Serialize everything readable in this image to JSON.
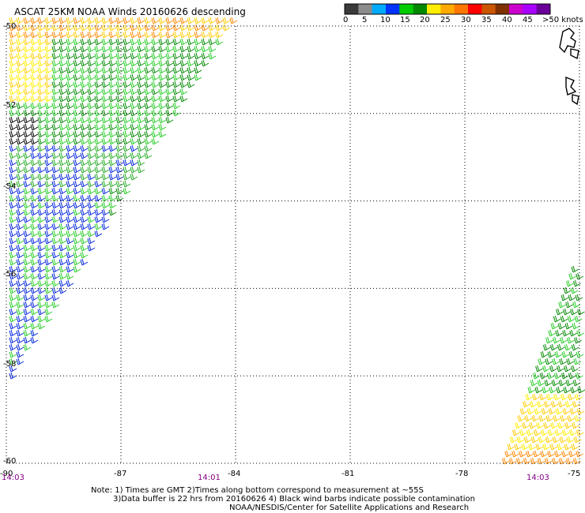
{
  "title": "ASCAT 25KM NOAA Winds 20160626 descending",
  "map": {
    "lat_min": -60,
    "lat_max": -50,
    "lon_min": -90,
    "lon_max": -75,
    "lat_grid": [
      -50,
      -52,
      -54,
      -56,
      -58,
      -60
    ],
    "lon_grid": [
      -90,
      -87,
      -84,
      -81,
      -78,
      -75
    ]
  },
  "lat_labels": [
    "-50",
    "-52",
    "-54",
    "-56",
    "-58",
    "-60"
  ],
  "lon_labels": [
    "-90",
    "-87",
    "-84",
    "-81",
    "-78",
    "-75"
  ],
  "times": [
    "14:03",
    "14:01",
    "14:03"
  ],
  "legend": {
    "unit": "knots",
    "ticks": [
      "0",
      "5",
      "10",
      "15",
      "20",
      "25",
      "30",
      "35",
      "40",
      "45",
      ">50"
    ],
    "colors": [
      "#3a3a3a",
      "#8c8c8c",
      "#00aaff",
      "#0033ff",
      "#00cc00",
      "#008800",
      "#ffee00",
      "#ffaa00",
      "#ff7700",
      "#ff0000",
      "#cc5500",
      "#803000",
      "#cc00cc",
      "#aa00ff",
      "#6a0099"
    ]
  },
  "notes": {
    "line1": "Note: 1) Times are GMT 2)Times along bottom correspond to measurement at ~55S",
    "line2": "3)Data buffer is 22 hrs from 20160626 4) Black wind barbs indicate possible contamination",
    "line3": "NOAA/NESDIS/Center for Satellite Applications and Research"
  }
}
